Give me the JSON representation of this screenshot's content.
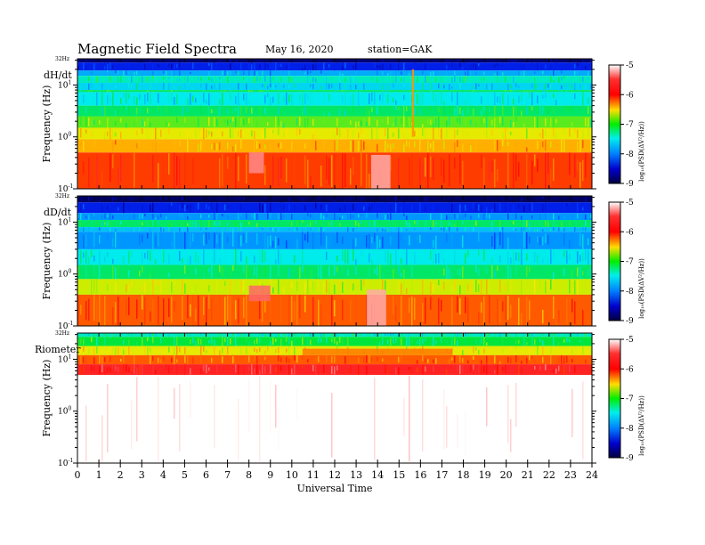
{
  "header": {
    "title": "Magnetic  Field  Spectra",
    "date": "May 16, 2020",
    "station": "station=GAK"
  },
  "chart_data": [
    {
      "type": "heatmap",
      "panel_label": "dH/dt",
      "ylabel": "Frequency  (Hz)",
      "yscale": "log",
      "ylim": [
        0.1,
        32
      ],
      "y_top_label": "32Hz",
      "xlim": [
        0,
        24
      ],
      "colorbar": {
        "label": "log₁₀(PSD(ΔV²/Hz))",
        "ticks": [
          -5,
          -6,
          -7,
          -8,
          -9
        ],
        "range": [
          -9,
          -5
        ]
      },
      "bands": [
        {
          "f_lo": 27,
          "f_hi": 32,
          "value": -9.2
        },
        {
          "f_lo": 19,
          "f_hi": 27,
          "value": -8.6
        },
        {
          "f_lo": 15,
          "f_hi": 19,
          "value": -7.9
        },
        {
          "f_lo": 11,
          "f_hi": 15,
          "value": -7.5
        },
        {
          "f_lo": 8,
          "f_hi": 11,
          "value": -7.7
        },
        {
          "f_lo": 7.3,
          "f_hi": 8,
          "value": -7.3
        },
        {
          "f_lo": 4,
          "f_hi": 7.3,
          "value": -7.6
        },
        {
          "f_lo": 2.5,
          "f_hi": 4,
          "value": -7.3
        },
        {
          "f_lo": 1.5,
          "f_hi": 2.5,
          "value": -7.0
        },
        {
          "f_lo": 0.9,
          "f_hi": 1.5,
          "value": -6.6
        },
        {
          "f_lo": 0.5,
          "f_hi": 0.9,
          "value": -6.3
        },
        {
          "f_lo": 0.1,
          "f_hi": 0.5,
          "value": -5.9
        }
      ],
      "features": [
        {
          "t_start": 13.7,
          "t_end": 14.6,
          "f_lo": 0.1,
          "f_hi": 0.45,
          "value": -5.0
        },
        {
          "t_start": 8.0,
          "t_end": 8.7,
          "f_lo": 0.2,
          "f_hi": 0.5,
          "value": -5.1
        },
        {
          "t_start": 15.6,
          "t_end": 15.7,
          "f_lo": 1.0,
          "f_hi": 20,
          "value": -6.2
        }
      ]
    },
    {
      "type": "heatmap",
      "panel_label": "dD/dt",
      "ylabel": "Frequency  (Hz)",
      "yscale": "log",
      "ylim": [
        0.1,
        32
      ],
      "y_top_label": "32Hz",
      "xlim": [
        0,
        24
      ],
      "colorbar": {
        "label": "log₁₀(PSD(ΔV²/Hz))",
        "ticks": [
          -5,
          -6,
          -7,
          -8,
          -9
        ],
        "range": [
          -9,
          -5
        ]
      },
      "bands": [
        {
          "f_lo": 24,
          "f_hi": 32,
          "value": -9.3
        },
        {
          "f_lo": 15,
          "f_hi": 24,
          "value": -8.6
        },
        {
          "f_lo": 11,
          "f_hi": 15,
          "value": -8.0
        },
        {
          "f_lo": 8,
          "f_hi": 11,
          "value": -7.3
        },
        {
          "f_lo": 6.5,
          "f_hi": 8,
          "value": -7.8
        },
        {
          "f_lo": 3,
          "f_hi": 6.5,
          "value": -8.0
        },
        {
          "f_lo": 1.5,
          "f_hi": 3,
          "value": -7.6
        },
        {
          "f_lo": 0.8,
          "f_hi": 1.5,
          "value": -7.3
        },
        {
          "f_lo": 0.4,
          "f_hi": 0.8,
          "value": -6.7
        },
        {
          "f_lo": 0.1,
          "f_hi": 0.4,
          "value": -6.0
        }
      ],
      "features": [
        {
          "t_start": 13.5,
          "t_end": 14.4,
          "f_lo": 0.1,
          "f_hi": 0.5,
          "value": -5.0
        },
        {
          "t_start": 8.0,
          "t_end": 9.0,
          "f_lo": 0.3,
          "f_hi": 0.6,
          "value": -5.2
        }
      ]
    },
    {
      "type": "heatmap",
      "panel_label": "Riometer",
      "ylabel": "Frequency  (Hz)",
      "yscale": "log",
      "ylim": [
        0.1,
        32
      ],
      "y_top_label": "32Hz",
      "xlim": [
        0,
        24
      ],
      "xlabel": "Universal  Time",
      "xticks": [
        0,
        1,
        2,
        3,
        4,
        5,
        6,
        7,
        8,
        9,
        10,
        11,
        12,
        13,
        14,
        15,
        16,
        17,
        18,
        19,
        20,
        21,
        22,
        23,
        24
      ],
      "colorbar": {
        "label": "log₁₀(PSD(ΔV²/Hz))",
        "ticks": [
          -5,
          -6,
          -7,
          -8,
          -9
        ],
        "range": [
          -9,
          -5
        ]
      },
      "bands": [
        {
          "f_lo": 27,
          "f_hi": 32,
          "value": -7.5
        },
        {
          "f_lo": 18,
          "f_hi": 27,
          "value": -7.2
        },
        {
          "f_lo": 12,
          "f_hi": 18,
          "value": -6.6
        },
        {
          "f_lo": 8,
          "f_hi": 12,
          "value": -6.0
        },
        {
          "f_lo": 5,
          "f_hi": 8,
          "value": -5.5
        },
        {
          "f_lo": 0.1,
          "f_hi": 5,
          "value": -4.5
        }
      ],
      "features": [
        {
          "t_start": 10.5,
          "t_end": 17.5,
          "f_lo": 12,
          "f_hi": 16,
          "value": -6.1
        }
      ]
    }
  ]
}
